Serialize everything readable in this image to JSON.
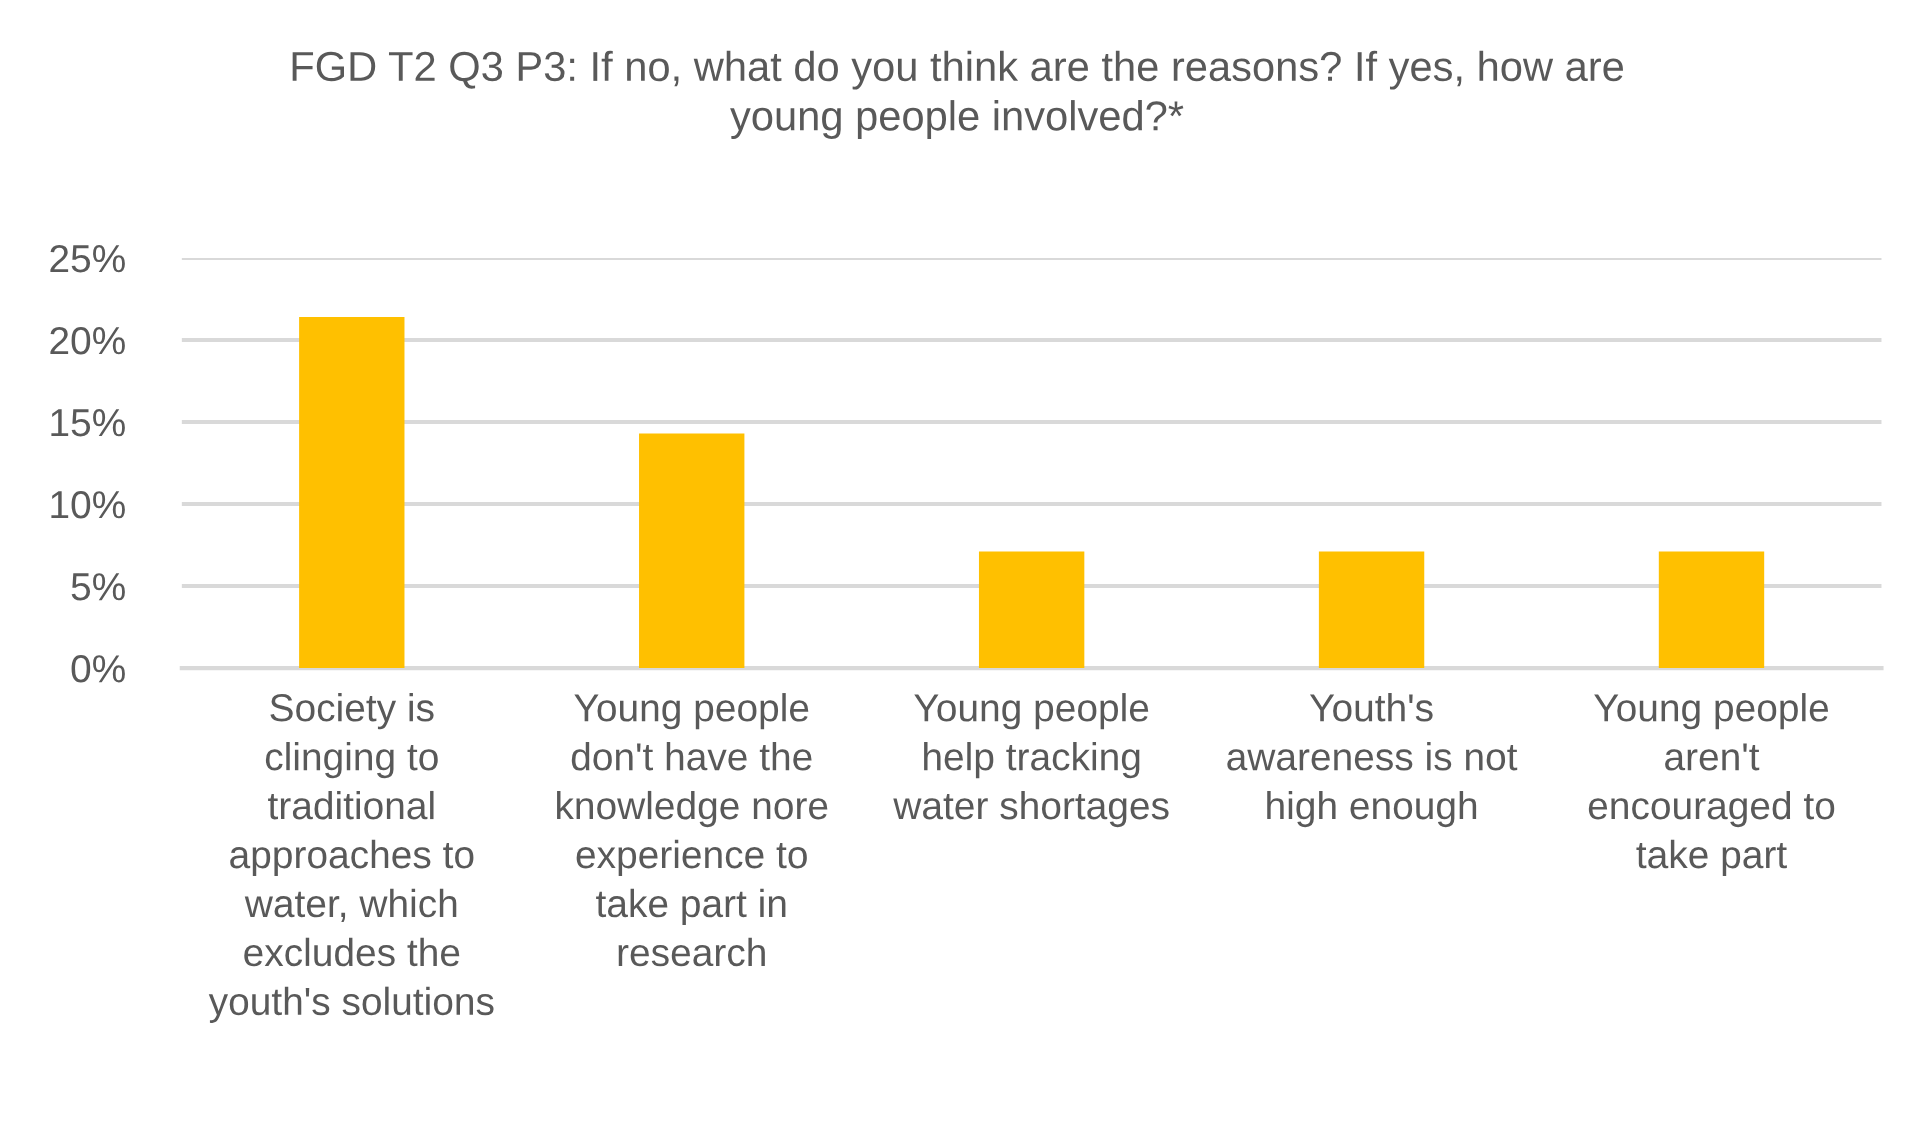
{
  "chart_data": {
    "type": "bar",
    "title": "FGD T2 Q3 P3: If no, what do you think are the reasons? If yes, how are\nyoung people involved?*",
    "categories": [
      "Society is\nclinging to\ntraditional\napproaches to\nwater, which\nexcludes the\nyouth's solutions",
      "Young people\ndon't have the\nknowledge nore\nexperience to\ntake part in\nresearch",
      "Young people\nhelp tracking\nwater shortages",
      "Youth's\nawareness is not\nhigh enough",
      "Young people\naren't\nencouraged to\ntake part"
    ],
    "values": [
      21.4,
      14.3,
      7.1,
      7.1,
      7.1
    ],
    "color": "#ffc000",
    "ylim": [
      0,
      25
    ],
    "yticks": [
      {
        "value": 0,
        "label": "0%"
      },
      {
        "value": 5,
        "label": "5%"
      },
      {
        "value": 10,
        "label": "10%"
      },
      {
        "value": 15,
        "label": "15%"
      },
      {
        "value": 20,
        "label": "20%"
      },
      {
        "value": 25,
        "label": "25%"
      }
    ],
    "grid": "y"
  }
}
